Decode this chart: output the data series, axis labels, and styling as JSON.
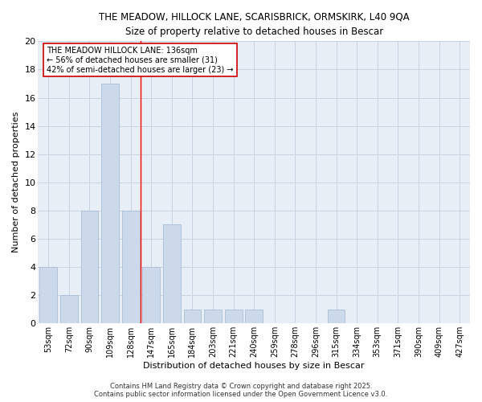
{
  "title_line1": "THE MEADOW, HILLOCK LANE, SCARISBRICK, ORMSKIRK, L40 9QA",
  "title_line2": "Size of property relative to detached houses in Bescar",
  "xlabel": "Distribution of detached houses by size in Bescar",
  "ylabel": "Number of detached properties",
  "bin_labels": [
    "53sqm",
    "72sqm",
    "90sqm",
    "109sqm",
    "128sqm",
    "147sqm",
    "165sqm",
    "184sqm",
    "203sqm",
    "221sqm",
    "240sqm",
    "259sqm",
    "278sqm",
    "296sqm",
    "315sqm",
    "334sqm",
    "353sqm",
    "371sqm",
    "390sqm",
    "409sqm",
    "427sqm"
  ],
  "bar_values": [
    4,
    2,
    8,
    17,
    8,
    4,
    7,
    1,
    1,
    1,
    1,
    0,
    0,
    0,
    1,
    0,
    0,
    0,
    0,
    0,
    0
  ],
  "bar_color": "#ccd9ea",
  "bar_edge_color": "#aabdd4",
  "grid_color": "#c8d4e4",
  "background_color": "#e8eef6",
  "red_line_x": 4.5,
  "annotation_text": "THE MEADOW HILLOCK LANE: 136sqm\n← 56% of detached houses are smaller (31)\n42% of semi-detached houses are larger (23) →",
  "annotation_box_color": "#ffffff",
  "annotation_box_edge": "#cc0000",
  "ylim": [
    0,
    20
  ],
  "yticks": [
    0,
    2,
    4,
    6,
    8,
    10,
    12,
    14,
    16,
    18,
    20
  ],
  "footer_text": "Contains HM Land Registry data © Crown copyright and database right 2025.\nContains public sector information licensed under the Open Government Licence v3.0.",
  "num_bins": 21
}
